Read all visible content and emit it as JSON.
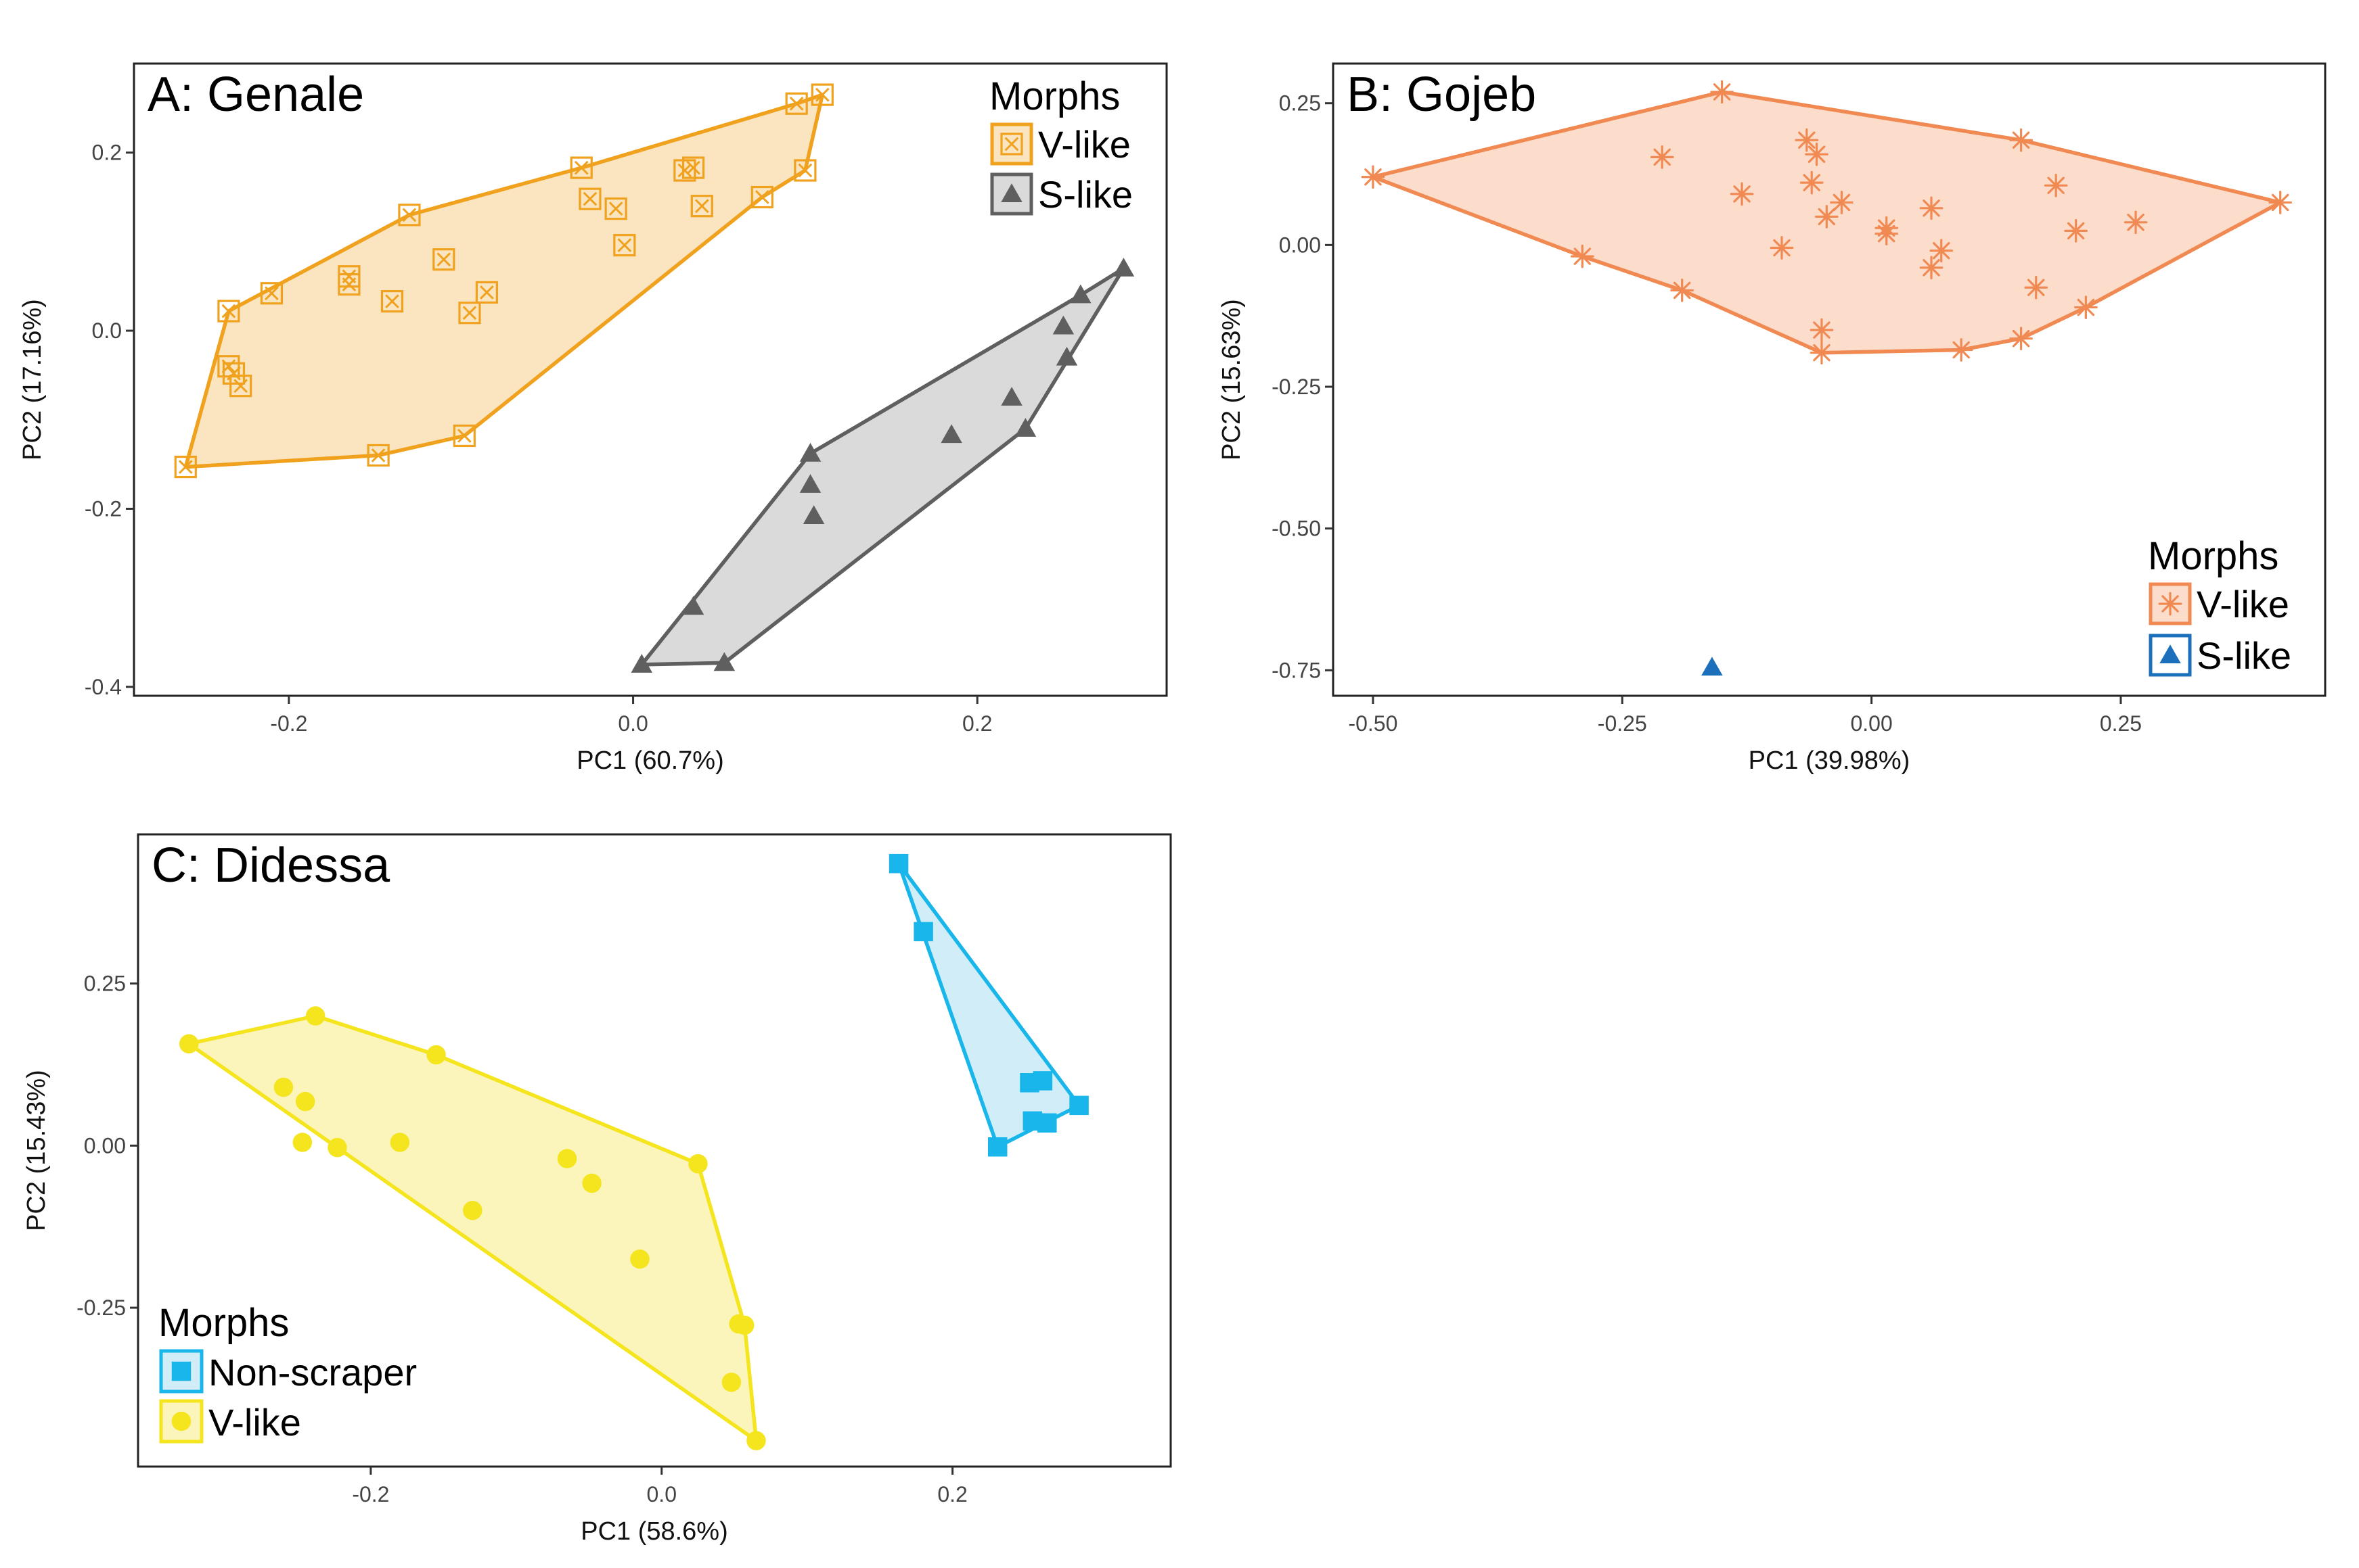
{
  "colors": {
    "genale_v": "#F0A21E",
    "genale_v_fill": "#FAE5C0",
    "genale_s": "#5F5F5F",
    "genale_s_fill": "#DADADA",
    "gojeb_v": "#F08A52",
    "gojeb_v_fill": "#FCDCCB",
    "gojeb_s": "#1C6FBB",
    "didessa_ns": "#18B6EA",
    "didessa_ns_fill": "#D1EEF8",
    "didessa_v": "#F4E51E",
    "didessa_v_fill": "#FBF5BC"
  },
  "chart_data": [
    {
      "id": "A",
      "type": "scatter",
      "title": "A: Genale",
      "xlabel": "PC1 (60.7%)",
      "ylabel": "PC2 (17.16%)",
      "xlim": [
        -0.29,
        0.31
      ],
      "ylim": [
        -0.41,
        0.3
      ],
      "xticks": [
        {
          "v": -0.2,
          "label": "-0.2"
        },
        {
          "v": 0.0,
          "label": "0.0"
        },
        {
          "v": 0.2,
          "label": "0.2"
        }
      ],
      "yticks": [
        {
          "v": 0.2,
          "label": "0.2"
        },
        {
          "v": 0.0,
          "label": "0.0"
        },
        {
          "v": -0.2,
          "label": "-0.2"
        },
        {
          "v": -0.4,
          "label": "-0.4"
        }
      ],
      "legend": {
        "title": "Morphs",
        "position": "top-right"
      },
      "series": [
        {
          "name": "V-like",
          "shape": "box-x",
          "color_key": "genale_v",
          "fill_key": "genale_v_fill",
          "points": [
            [
              0.11,
              0.265
            ],
            [
              0.095,
              0.255
            ],
            [
              0.1,
              0.18
            ],
            [
              0.075,
              0.15
            ],
            [
              -0.03,
              0.183
            ],
            [
              -0.025,
              0.148
            ],
            [
              -0.01,
              0.137
            ],
            [
              0.03,
              0.18
            ],
            [
              0.035,
              0.183
            ],
            [
              0.04,
              0.14
            ],
            [
              -0.005,
              0.096
            ],
            [
              -0.13,
              0.13
            ],
            [
              -0.11,
              0.08
            ],
            [
              -0.165,
              0.061
            ],
            [
              -0.165,
              0.052
            ],
            [
              -0.14,
              0.033
            ],
            [
              -0.21,
              0.042
            ],
            [
              -0.085,
              0.043
            ],
            [
              -0.095,
              0.02
            ],
            [
              -0.235,
              0.022
            ],
            [
              -0.235,
              -0.04
            ],
            [
              -0.232,
              -0.048
            ],
            [
              -0.228,
              -0.062
            ],
            [
              -0.26,
              -0.153
            ],
            [
              -0.148,
              -0.14
            ],
            [
              -0.098,
              -0.118
            ]
          ],
          "hull": [
            [
              -0.26,
              -0.153
            ],
            [
              -0.148,
              -0.14
            ],
            [
              -0.098,
              -0.118
            ],
            [
              0.075,
              0.15
            ],
            [
              0.1,
              0.18
            ],
            [
              0.11,
              0.265
            ],
            [
              0.095,
              0.255
            ],
            [
              -0.03,
              0.183
            ],
            [
              -0.13,
              0.13
            ],
            [
              -0.235,
              0.022
            ]
          ]
        },
        {
          "name": "S-like",
          "shape": "triangle",
          "color_key": "genale_s",
          "fill_key": "genale_s_fill",
          "points": [
            [
              0.285,
              0.07
            ],
            [
              0.26,
              0.04
            ],
            [
              0.25,
              0.005
            ],
            [
              0.252,
              -0.03
            ],
            [
              0.22,
              -0.075
            ],
            [
              0.228,
              -0.11
            ],
            [
              0.185,
              -0.117
            ],
            [
              0.103,
              -0.138
            ],
            [
              0.103,
              -0.173
            ],
            [
              0.105,
              -0.208
            ],
            [
              0.035,
              -0.31
            ],
            [
              0.053,
              -0.373
            ],
            [
              0.005,
              -0.375
            ]
          ],
          "hull": [
            [
              0.005,
              -0.375
            ],
            [
              0.053,
              -0.373
            ],
            [
              0.228,
              -0.11
            ],
            [
              0.285,
              0.07
            ],
            [
              0.26,
              0.04
            ],
            [
              0.103,
              -0.138
            ]
          ]
        }
      ]
    },
    {
      "id": "B",
      "type": "scatter",
      "title": "B: Gojeb",
      "xlabel": "PC1 (39.98%)",
      "ylabel": "PC2 (15.63%)",
      "xlim": [
        -0.54,
        0.455
      ],
      "ylim": [
        -0.795,
        0.32
      ],
      "xticks": [
        {
          "v": -0.5,
          "label": "-0.50"
        },
        {
          "v": -0.25,
          "label": "-0.25"
        },
        {
          "v": 0.0,
          "label": "0.00"
        },
        {
          "v": 0.25,
          "label": "0.25"
        }
      ],
      "yticks": [
        {
          "v": 0.25,
          "label": "0.25"
        },
        {
          "v": 0.0,
          "label": "0.00"
        },
        {
          "v": -0.25,
          "label": "-0.25"
        },
        {
          "v": -0.5,
          "label": "-0.50"
        },
        {
          "v": -0.75,
          "label": "-0.75"
        }
      ],
      "legend": {
        "title": "Morphs",
        "position": "bottom-right"
      },
      "series": [
        {
          "name": "V-like",
          "shape": "asterisk",
          "color_key": "gojeb_v",
          "fill_key": "gojeb_v_fill",
          "points": [
            [
              -0.5,
              0.12
            ],
            [
              -0.15,
              0.27
            ],
            [
              0.15,
              0.185
            ],
            [
              0.41,
              0.075
            ],
            [
              -0.21,
              0.155
            ],
            [
              -0.065,
              0.185
            ],
            [
              -0.055,
              0.16
            ],
            [
              -0.06,
              0.11
            ],
            [
              -0.13,
              0.09
            ],
            [
              -0.045,
              0.05
            ],
            [
              -0.03,
              0.075
            ],
            [
              0.015,
              0.03
            ],
            [
              0.015,
              0.02
            ],
            [
              0.06,
              0.065
            ],
            [
              0.185,
              0.105
            ],
            [
              0.205,
              0.025
            ],
            [
              0.265,
              0.04
            ],
            [
              0.07,
              -0.01
            ],
            [
              0.06,
              -0.04
            ],
            [
              -0.09,
              -0.005
            ],
            [
              -0.29,
              -0.02
            ],
            [
              -0.19,
              -0.08
            ],
            [
              0.165,
              -0.075
            ],
            [
              0.215,
              -0.11
            ],
            [
              -0.05,
              -0.15
            ],
            [
              -0.05,
              -0.19
            ],
            [
              0.09,
              -0.185
            ],
            [
              0.15,
              -0.165
            ]
          ],
          "hull": [
            [
              -0.5,
              0.12
            ],
            [
              -0.15,
              0.27
            ],
            [
              0.15,
              0.185
            ],
            [
              0.41,
              0.075
            ],
            [
              0.215,
              -0.11
            ],
            [
              0.15,
              -0.165
            ],
            [
              0.09,
              -0.185
            ],
            [
              -0.05,
              -0.19
            ],
            [
              -0.19,
              -0.08
            ],
            [
              -0.29,
              -0.02
            ]
          ]
        },
        {
          "name": "S-like",
          "shape": "triangle",
          "color_key": "gojeb_s",
          "fill_key": "",
          "points": [
            [
              -0.16,
              -0.745
            ]
          ],
          "hull": []
        }
      ]
    },
    {
      "id": "C",
      "type": "scatter",
      "title": "C: Didessa",
      "xlabel": "PC1 (58.6%)",
      "ylabel": "PC2 (15.43%)",
      "xlim": [
        -0.36,
        0.35
      ],
      "ylim": [
        -0.495,
        0.48
      ],
      "xticks": [
        {
          "v": -0.2,
          "label": "-0.2"
        },
        {
          "v": 0.0,
          "label": "0.0"
        },
        {
          "v": 0.2,
          "label": "0.2"
        }
      ],
      "yticks": [
        {
          "v": 0.25,
          "label": "0.25"
        },
        {
          "v": 0.0,
          "label": "0.00"
        },
        {
          "v": -0.25,
          "label": "-0.25"
        }
      ],
      "legend": {
        "title": "Morphs",
        "position": "bottom-left"
      },
      "series": [
        {
          "name": "Non-scraper",
          "shape": "square",
          "color_key": "didessa_ns",
          "fill_key": "didessa_ns_fill",
          "points": [
            [
              0.163,
              0.435
            ],
            [
              0.18,
              0.33
            ],
            [
              0.253,
              0.097
            ],
            [
              0.262,
              0.1
            ],
            [
              0.287,
              0.062
            ],
            [
              0.255,
              0.038
            ],
            [
              0.265,
              0.035
            ],
            [
              0.231,
              -0.002
            ]
          ],
          "hull": [
            [
              0.163,
              0.435
            ],
            [
              0.287,
              0.062
            ],
            [
              0.231,
              -0.002
            ]
          ]
        },
        {
          "name": "V-like",
          "shape": "circle",
          "color_key": "didessa_v",
          "fill_key": "didessa_v_fill",
          "points": [
            [
              -0.325,
              0.157
            ],
            [
              -0.238,
              0.2
            ],
            [
              -0.155,
              0.14
            ],
            [
              -0.26,
              0.09
            ],
            [
              -0.245,
              0.068
            ],
            [
              -0.247,
              0.005
            ],
            [
              -0.223,
              -0.003
            ],
            [
              -0.18,
              0.005
            ],
            [
              -0.13,
              -0.1
            ],
            [
              -0.065,
              -0.02
            ],
            [
              -0.048,
              -0.058
            ],
            [
              0.025,
              -0.028
            ],
            [
              -0.015,
              -0.175
            ],
            [
              0.053,
              -0.275
            ],
            [
              0.057,
              -0.277
            ],
            [
              0.048,
              -0.365
            ],
            [
              0.065,
              -0.455
            ]
          ],
          "hull": [
            [
              -0.325,
              0.157
            ],
            [
              -0.238,
              0.2
            ],
            [
              -0.155,
              0.14
            ],
            [
              0.025,
              -0.028
            ],
            [
              0.057,
              -0.277
            ],
            [
              0.065,
              -0.455
            ]
          ]
        }
      ]
    }
  ]
}
